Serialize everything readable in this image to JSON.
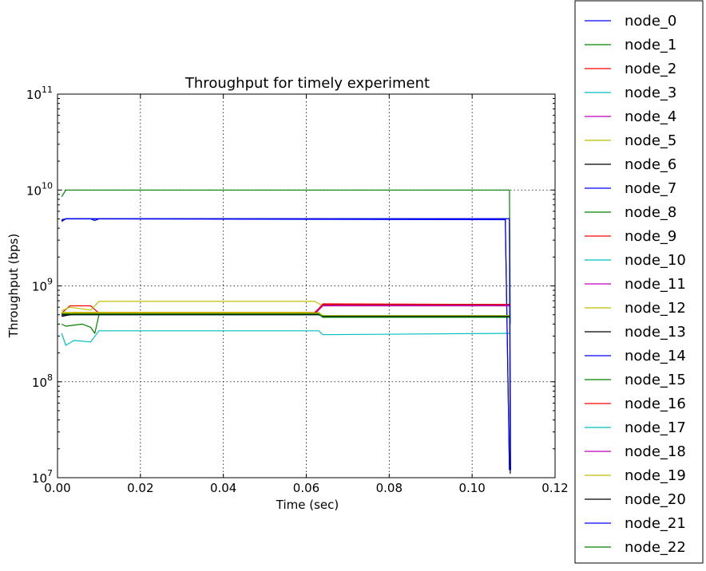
{
  "chart_data": {
    "type": "line",
    "title": "Throughput for timely experiment",
    "xlabel": "Time (sec)",
    "ylabel": "Throughput (bps)",
    "xlim": [
      0.0,
      0.12
    ],
    "ylim": [
      10000000.0,
      100000000000.0
    ],
    "yscale": "log",
    "grid": true,
    "legend_position": "outside-right",
    "x_ticks": [
      "0.00",
      "0.02",
      "0.04",
      "0.06",
      "0.08",
      "0.10",
      "0.12"
    ],
    "y_ticks": [
      {
        "base": "10",
        "exp": "7"
      },
      {
        "base": "10",
        "exp": "8"
      },
      {
        "base": "10",
        "exp": "9"
      },
      {
        "base": "10",
        "exp": "10"
      },
      {
        "base": "10",
        "exp": "11"
      }
    ],
    "series": [
      {
        "name": "node_0",
        "color": "#0000ff",
        "points": [
          [
            0.001,
            4800000000.0
          ],
          [
            0.002,
            5000000000.0
          ],
          [
            0.008,
            5000000000.0
          ],
          [
            0.009,
            4800000000.0
          ],
          [
            0.01,
            5000000000.0
          ],
          [
            0.108,
            5000000000.0
          ],
          [
            0.109,
            12000000.0
          ]
        ]
      },
      {
        "name": "node_1",
        "color": "#008000",
        "points": [
          [
            0.001,
            8500000000.0
          ],
          [
            0.002,
            10000000000.0
          ],
          [
            0.109,
            10000000000.0
          ],
          [
            0.1092,
            400000000.0
          ]
        ]
      },
      {
        "name": "node_2",
        "color": "#ff0000",
        "points": [
          [
            0.001,
            520000000.0
          ],
          [
            0.003,
            620000000.0
          ],
          [
            0.008,
            620000000.0
          ],
          [
            0.01,
            520000000.0
          ],
          [
            0.062,
            520000000.0
          ],
          [
            0.064,
            650000000.0
          ],
          [
            0.109,
            640000000.0
          ]
        ]
      },
      {
        "name": "node_3",
        "color": "#00bfbf",
        "points": [
          [
            0.001,
            320000000.0
          ],
          [
            0.002,
            240000000.0
          ],
          [
            0.004,
            270000000.0
          ],
          [
            0.008,
            260000000.0
          ],
          [
            0.01,
            340000000.0
          ],
          [
            0.063,
            340000000.0
          ],
          [
            0.064,
            310000000.0
          ],
          [
            0.109,
            320000000.0
          ]
        ]
      },
      {
        "name": "node_4",
        "color": "#bf00bf",
        "points": [
          [
            0.001,
            500000000.0
          ],
          [
            0.003,
            520000000.0
          ],
          [
            0.063,
            520000000.0
          ],
          [
            0.064,
            480000000.0
          ],
          [
            0.109,
            480000000.0
          ]
        ]
      },
      {
        "name": "node_5",
        "color": "#bfbf00",
        "points": [
          [
            0.001,
            550000000.0
          ],
          [
            0.003,
            600000000.0
          ],
          [
            0.008,
            560000000.0
          ],
          [
            0.01,
            690000000.0
          ],
          [
            0.062,
            690000000.0
          ],
          [
            0.064,
            620000000.0
          ],
          [
            0.109,
            620000000.0
          ]
        ]
      },
      {
        "name": "node_6",
        "color": "#000000",
        "points": [
          [
            0.001,
            4900000000.0
          ],
          [
            0.002,
            5000000000.0
          ],
          [
            0.109,
            5000000000.0
          ],
          [
            0.1092,
            11000000.0
          ]
        ]
      },
      {
        "name": "node_7",
        "color": "#0000ff",
        "points": [
          [
            0.001,
            500000000.0
          ],
          [
            0.003,
            510000000.0
          ],
          [
            0.063,
            510000000.0
          ],
          [
            0.064,
            470000000.0
          ],
          [
            0.109,
            470000000.0
          ]
        ]
      },
      {
        "name": "node_8",
        "color": "#008000",
        "points": [
          [
            0.001,
            400000000.0
          ],
          [
            0.002,
            380000000.0
          ],
          [
            0.006,
            400000000.0
          ],
          [
            0.008,
            370000000.0
          ],
          [
            0.009,
            320000000.0
          ],
          [
            0.01,
            500000000.0
          ],
          [
            0.063,
            500000000.0
          ],
          [
            0.064,
            480000000.0
          ],
          [
            0.109,
            480000000.0
          ]
        ]
      },
      {
        "name": "node_9",
        "color": "#ff0000",
        "points": [
          [
            0.001,
            500000000.0
          ],
          [
            0.004,
            530000000.0
          ],
          [
            0.062,
            530000000.0
          ],
          [
            0.064,
            630000000.0
          ],
          [
            0.109,
            630000000.0
          ]
        ]
      },
      {
        "name": "node_10",
        "color": "#00bfbf",
        "points": [
          [
            0.001,
            510000000.0
          ],
          [
            0.063,
            510000000.0
          ],
          [
            0.064,
            490000000.0
          ],
          [
            0.109,
            490000000.0
          ]
        ]
      },
      {
        "name": "node_11",
        "color": "#bf00bf",
        "points": [
          [
            0.001,
            490000000.0
          ],
          [
            0.004,
            500000000.0
          ],
          [
            0.062,
            500000000.0
          ],
          [
            0.064,
            630000000.0
          ],
          [
            0.109,
            630000000.0
          ]
        ]
      },
      {
        "name": "node_12",
        "color": "#bfbf00",
        "points": [
          [
            0.001,
            530000000.0
          ],
          [
            0.063,
            530000000.0
          ],
          [
            0.064,
            490000000.0
          ],
          [
            0.109,
            490000000.0
          ]
        ]
      },
      {
        "name": "node_13",
        "color": "#000000",
        "points": [
          [
            0.001,
            480000000.0
          ],
          [
            0.004,
            510000000.0
          ],
          [
            0.062,
            510000000.0
          ],
          [
            0.064,
            640000000.0
          ],
          [
            0.109,
            640000000.0
          ]
        ]
      },
      {
        "name": "node_14",
        "color": "#0000ff",
        "points": [
          [
            0.001,
            4700000000.0
          ],
          [
            0.002,
            5000000000.0
          ],
          [
            0.108,
            4900000000.0
          ],
          [
            0.109,
            12000000.0
          ]
        ]
      },
      {
        "name": "node_15",
        "color": "#008000",
        "points": [
          [
            0.001,
            510000000.0
          ],
          [
            0.063,
            510000000.0
          ],
          [
            0.064,
            480000000.0
          ],
          [
            0.109,
            480000000.0
          ]
        ]
      },
      {
        "name": "node_16",
        "color": "#ff0000",
        "points": [
          [
            0.001,
            520000000.0
          ],
          [
            0.062,
            520000000.0
          ],
          [
            0.064,
            640000000.0
          ],
          [
            0.109,
            640000000.0
          ]
        ]
      },
      {
        "name": "node_17",
        "color": "#00bfbf",
        "points": [
          [
            0.001,
            500000000.0
          ],
          [
            0.063,
            500000000.0
          ],
          [
            0.064,
            490000000.0
          ],
          [
            0.109,
            490000000.0
          ]
        ]
      },
      {
        "name": "node_18",
        "color": "#bf00bf",
        "points": [
          [
            0.001,
            510000000.0
          ],
          [
            0.062,
            510000000.0
          ],
          [
            0.064,
            620000000.0
          ],
          [
            0.109,
            620000000.0
          ]
        ]
      },
      {
        "name": "node_19",
        "color": "#bfbf00",
        "points": [
          [
            0.001,
            520000000.0
          ],
          [
            0.063,
            520000000.0
          ],
          [
            0.064,
            490000000.0
          ],
          [
            0.109,
            490000000.0
          ]
        ]
      },
      {
        "name": "node_20",
        "color": "#000000",
        "points": [
          [
            0.001,
            500000000.0
          ],
          [
            0.063,
            500000000.0
          ],
          [
            0.064,
            480000000.0
          ],
          [
            0.109,
            480000000.0
          ]
        ]
      },
      {
        "name": "node_21",
        "color": "#0000ff",
        "points": [
          [
            0.001,
            4800000000.0
          ],
          [
            0.002,
            5000000000.0
          ],
          [
            0.109,
            5000000000.0
          ],
          [
            0.1093,
            12000000.0
          ]
        ]
      },
      {
        "name": "node_22",
        "color": "#008000",
        "points": [
          [
            0.001,
            510000000.0
          ],
          [
            0.063,
            510000000.0
          ],
          [
            0.064,
            470000000.0
          ],
          [
            0.109,
            470000000.0
          ]
        ]
      }
    ]
  }
}
